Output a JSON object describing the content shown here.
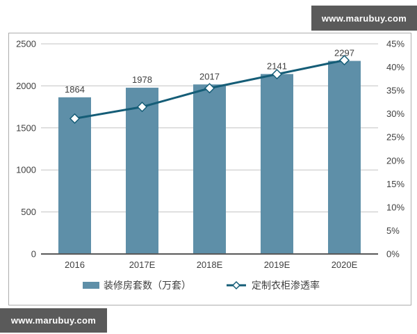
{
  "watermarks": {
    "top": "www.marubuy.com",
    "bottom": "www.marubuy.com",
    "bg_color": "#5a5a5a",
    "text_color": "#ffffff"
  },
  "chart_data": {
    "type": "bar",
    "subtype": "bar-line-combo",
    "title": "",
    "categories": [
      "2016",
      "2017E",
      "2018E",
      "2019E",
      "2020E"
    ],
    "series": [
      {
        "name": "装修房套数（万套）",
        "type": "bar",
        "axis": "left",
        "values": [
          1864,
          1978,
          2017,
          2141,
          2297
        ],
        "color": "#5e8fa8"
      },
      {
        "name": "定制衣柜渗透率",
        "type": "line",
        "axis": "right",
        "marker": "diamond",
        "values": [
          29,
          31.5,
          35.5,
          38.5,
          41.5
        ],
        "color": "#155d77",
        "marker_fill": "#ffffff"
      }
    ],
    "data_labels": [
      "1864",
      "1978",
      "2017",
      "2141",
      "2297"
    ],
    "left_axis": {
      "min": 0,
      "max": 2500,
      "step": 500,
      "ticks": [
        "0",
        "500",
        "1000",
        "1500",
        "2000",
        "2500"
      ]
    },
    "right_axis": {
      "min": 0,
      "max": 45,
      "step": 5,
      "ticks": [
        "0%",
        "5%",
        "10%",
        "15%",
        "20%",
        "25%",
        "30%",
        "35%",
        "40%",
        "45%"
      ]
    },
    "grid": true,
    "legend_position": "bottom",
    "colors": {
      "grid_line": "#c3c3c3",
      "axis_line": "#595959",
      "text": "#3f3f3f",
      "frame_border": "#adadad"
    }
  }
}
